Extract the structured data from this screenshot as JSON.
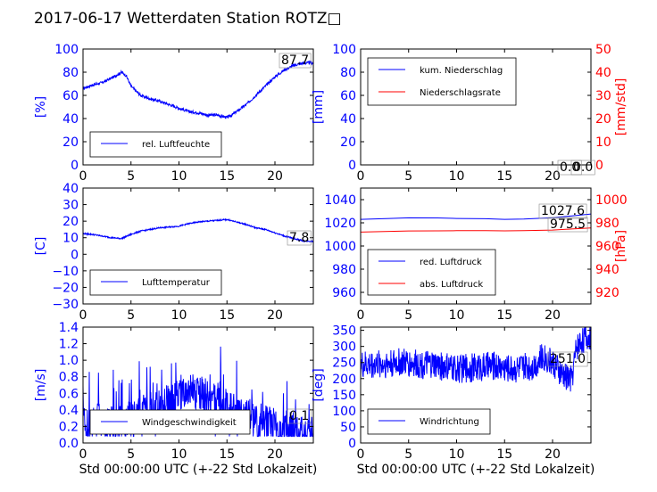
{
  "title": "2017-06-17 Wetterdaten Station ROTZ□",
  "colors": {
    "primary": "#0000ff",
    "secondary": "#ff0000",
    "axis": "#000000"
  },
  "chart_data": [
    {
      "id": "humidity",
      "type": "line",
      "ylabel": "[%]",
      "xlim": [
        0,
        24
      ],
      "ylim": [
        0,
        100
      ],
      "xticks": [
        "0",
        "5",
        "10",
        "15",
        "20"
      ],
      "yticks": [
        "0",
        "20",
        "40",
        "60",
        "80",
        "100"
      ],
      "legend": [
        "rel. Luftfeuchte"
      ],
      "annotation": "87.7",
      "series": [
        {
          "name": "rel. Luftfeuchte",
          "color": "#0000ff",
          "noise": 1.2,
          "x": [
            0,
            1,
            2,
            3,
            4,
            4.5,
            5,
            6,
            7,
            8,
            9,
            10,
            11,
            12,
            13,
            14,
            15,
            15.5,
            16,
            17,
            18,
            19,
            20,
            21,
            22,
            23,
            24
          ],
          "y": [
            66,
            69,
            71,
            75,
            80,
            77,
            68,
            60,
            57,
            55,
            52,
            49,
            46,
            45,
            43,
            43,
            41,
            43,
            46,
            52,
            60,
            68,
            76,
            82,
            86,
            88,
            88
          ]
        }
      ]
    },
    {
      "id": "precip",
      "type": "line",
      "ylabel": "[mm]",
      "ylabel2": "[mm/std]",
      "xlim": [
        0,
        24
      ],
      "ylim": [
        0,
        100
      ],
      "ylim2": [
        0,
        50
      ],
      "xticks": [
        "0",
        "5",
        "10",
        "15",
        "20"
      ],
      "yticks": [
        "0",
        "20",
        "40",
        "60",
        "80",
        "100"
      ],
      "yticks2": [
        "0",
        "10",
        "20",
        "30",
        "40",
        "50"
      ],
      "legend": [
        "kum. Niederschlag",
        "Niederschlagsrate"
      ],
      "annotation": "0.0",
      "annotation2": "0.0",
      "series": [
        {
          "name": "kum. Niederschlag",
          "color": "#0000ff",
          "x": [
            0,
            24
          ],
          "y": [
            0,
            0
          ]
        },
        {
          "name": "Niederschlagsrate",
          "color": "#ff0000",
          "axis": 2,
          "x": [
            0,
            24
          ],
          "y": [
            0,
            0
          ]
        }
      ]
    },
    {
      "id": "temperature",
      "type": "line",
      "ylabel": "[C]",
      "xlim": [
        0,
        24
      ],
      "ylim": [
        -30,
        40
      ],
      "xticks": [
        "0",
        "5",
        "10",
        "15",
        "20"
      ],
      "yticks": [
        "−30",
        "−20",
        "−10",
        "0",
        "10",
        "20",
        "30",
        "40"
      ],
      "legend": [
        "Lufttemperatur"
      ],
      "annotation": "7.8",
      "series": [
        {
          "name": "Lufttemperatur",
          "color": "#0000ff",
          "noise": 0.4,
          "x": [
            0,
            1,
            2,
            3,
            4,
            5,
            6,
            7,
            8,
            9,
            10,
            11,
            12,
            13,
            14,
            15,
            16,
            17,
            18,
            19,
            20,
            21,
            22,
            23,
            24
          ],
          "y": [
            12.5,
            12,
            11,
            10,
            9.5,
            12,
            14,
            15,
            16,
            16.5,
            17,
            18.5,
            19.5,
            20,
            20.5,
            21,
            19.5,
            18,
            16,
            15,
            13,
            11,
            9.5,
            8,
            7.8
          ]
        }
      ]
    },
    {
      "id": "pressure",
      "type": "line",
      "ylabel2": "[hPa]",
      "xlim": [
        0,
        24
      ],
      "ylim": [
        950,
        1050
      ],
      "ylim2": [
        910,
        1010
      ],
      "xticks": [
        "0",
        "5",
        "10",
        "15",
        "20"
      ],
      "yticks": [
        "960",
        "980",
        "1000",
        "1020",
        "1040"
      ],
      "yticks2": [
        "920",
        "940",
        "960",
        "980",
        "1000"
      ],
      "legend": [
        "red. Luftdruck",
        "abs. Luftdruck"
      ],
      "annotation": "1027.6",
      "annotation2": "975.5",
      "series": [
        {
          "name": "red. Luftdruck",
          "color": "#0000ff",
          "x": [
            0,
            3,
            5,
            8,
            10,
            13,
            15,
            17,
            20,
            22,
            24
          ],
          "y": [
            1023,
            1023.8,
            1024.3,
            1024.2,
            1023.8,
            1023.5,
            1023,
            1023.2,
            1024.5,
            1026,
            1027.6
          ]
        },
        {
          "name": "abs. Luftdruck",
          "color": "#ff0000",
          "axis": 2,
          "x": [
            0,
            3,
            5,
            8,
            10,
            13,
            15,
            17,
            20,
            22,
            24
          ],
          "y": [
            972,
            972.6,
            973,
            973.1,
            973.2,
            973.2,
            973.1,
            973.3,
            973.8,
            974.7,
            975.5
          ]
        }
      ]
    },
    {
      "id": "windspeed",
      "type": "line",
      "ylabel": "[m/s]",
      "xlabel": "Std 00:00:00 UTC (+-22 Std Lokalzeit)",
      "xlim": [
        0,
        24
      ],
      "ylim": [
        0,
        1.4
      ],
      "xticks": [
        "0",
        "5",
        "10",
        "15",
        "20"
      ],
      "yticks": [
        "0.0",
        "0.2",
        "0.4",
        "0.6",
        "0.8",
        "1.0",
        "1.2",
        "1.4"
      ],
      "legend": [
        "Windgeschwindigkeit"
      ],
      "annotation": "0.1",
      "series": [
        {
          "name": "Windgeschwindigkeit",
          "color": "#0000ff",
          "noise": 0.22,
          "clip": true,
          "x": [
            0,
            2,
            4,
            5,
            6,
            7,
            8,
            9,
            10,
            11,
            12,
            13,
            14,
            15,
            16,
            17,
            18,
            19,
            20,
            21,
            22,
            23,
            24
          ],
          "y": [
            0.22,
            0.28,
            0.25,
            0.3,
            0.35,
            0.4,
            0.45,
            0.5,
            0.55,
            0.6,
            0.62,
            0.55,
            0.55,
            0.45,
            0.38,
            0.34,
            0.3,
            0.25,
            0.2,
            0.15,
            0.18,
            0.12,
            0.1
          ]
        }
      ]
    },
    {
      "id": "winddir",
      "type": "line",
      "ylabel": "[deg]",
      "xlabel": "Std 00:00:00 UTC (+-22 Std Lokalzeit)",
      "xlim": [
        0,
        24
      ],
      "ylim": [
        0,
        360
      ],
      "xticks": [
        "0",
        "5",
        "10",
        "15",
        "20"
      ],
      "yticks": [
        "0",
        "50",
        "100",
        "150",
        "200",
        "250",
        "300",
        "350"
      ],
      "legend": [
        "Windrichtung"
      ],
      "annotation": "251.0",
      "series": [
        {
          "name": "Windrichtung",
          "color": "#0000ff",
          "noise": 45,
          "clip": true,
          "x": [
            0,
            2,
            4,
            6,
            8,
            10,
            12,
            14,
            16,
            18,
            19,
            20,
            21,
            22,
            22.5,
            23,
            24
          ],
          "y": [
            240,
            245,
            250,
            245,
            240,
            230,
            235,
            240,
            230,
            240,
            270,
            250,
            210,
            200,
            300,
            320,
            330
          ]
        }
      ]
    }
  ]
}
